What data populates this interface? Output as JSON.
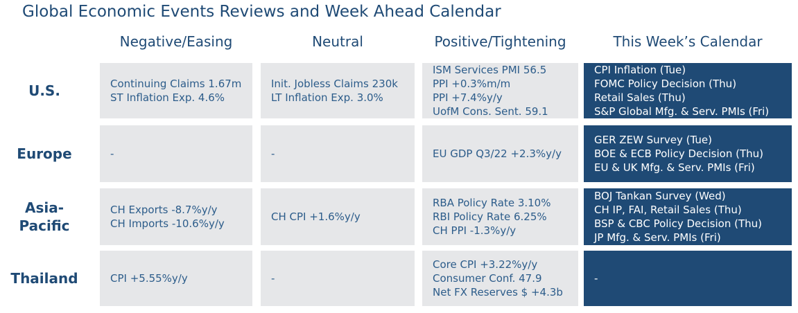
{
  "title": "Global Economic Events Reviews and Week Ahead Calendar",
  "columns": [
    "Negative/Easing",
    "Neutral",
    "Positive/Tightening",
    "This Week’s Calendar"
  ],
  "rows": [
    {
      "region": "U.S.",
      "negative": [
        "Continuing Claims 1.67m",
        "ST Inflation Exp. 4.6%"
      ],
      "neutral": [
        "Init. Jobless Claims 230k",
        "LT Inflation Exp. 3.0%"
      ],
      "positive": [
        "ISM Services PMI 56.5",
        "PPI +0.3%m/m",
        "PPI +7.4%y/y",
        "UofM Cons. Sent. 59.1"
      ],
      "calendar": [
        "CPI Inflation (Tue)",
        "FOMC Policy Decision (Thu)",
        "Retail Sales (Thu)",
        "S&P Global Mfg. & Serv. PMIs (Fri)"
      ]
    },
    {
      "region": "Europe",
      "negative": [
        "-"
      ],
      "neutral": [
        "-"
      ],
      "positive": [
        "EU GDP Q3/22 +2.3%y/y"
      ],
      "calendar": [
        "GER ZEW Survey (Tue)",
        "BOE & ECB Policy Decision (Thu)",
        "EU & UK Mfg. & Serv. PMIs (Fri)"
      ]
    },
    {
      "region": "Asia-\nPacific",
      "negative": [
        "CH Exports -8.7%y/y",
        "CH Imports -10.6%y/y"
      ],
      "neutral": [
        "CH CPI +1.6%y/y"
      ],
      "positive": [
        "RBA Policy Rate 3.10%",
        "RBI Policy Rate 6.25%",
        "CH PPI -1.3%y/y"
      ],
      "calendar": [
        "BOJ Tankan Survey (Wed)",
        "CH IP, FAI, Retail Sales (Thu)",
        "BSP & CBC Policy Decision (Thu)",
        "JP Mfg. & Serv. PMIs (Fri)"
      ]
    },
    {
      "region": "Thailand",
      "negative": [
        "CPI +5.55%y/y"
      ],
      "neutral": [
        "-"
      ],
      "positive": [
        "Core CPI +3.22%y/y",
        "Consumer Conf. 47.9",
        "Net FX Reserves $ +4.3b"
      ],
      "calendar": [
        "-"
      ]
    }
  ]
}
